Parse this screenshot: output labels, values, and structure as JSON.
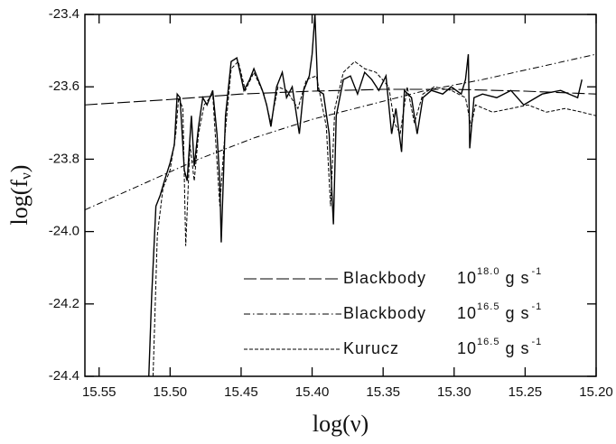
{
  "chart_data": {
    "type": "line",
    "xlabel": "log(ν)",
    "ylabel": {
      "text": "log(f",
      "subscript": "ν",
      "suffix": ")"
    },
    "xlim": [
      15.56,
      15.2
    ],
    "ylim": [
      -24.4,
      -23.4
    ],
    "xticks": [
      15.55,
      {
        "value": 15.5,
        "label": "15.50"
      },
      15.45,
      {
        "value": 15.4,
        "label": "15.40"
      },
      15.35,
      {
        "value": 15.3,
        "label": "15.30"
      },
      15.25,
      {
        "value": 15.2,
        "label": "15.20"
      }
    ],
    "yticks": [
      -24.4,
      -24.2,
      {
        "value": -24,
        "label": "-24.0"
      },
      -23.8,
      -23.6,
      -23.4
    ],
    "legend": "lower right",
    "series": [
      {
        "color": "#000000",
        "line_style": "solid",
        "x": [
          15.515,
          15.513,
          15.51,
          15.507,
          15.504,
          15.5,
          15.497,
          15.495,
          15.493,
          15.49,
          15.488,
          15.485,
          15.483,
          15.48,
          15.477,
          15.474,
          15.47,
          15.467,
          15.465,
          15.464,
          15.461,
          15.457,
          15.453,
          15.448,
          15.444,
          15.441,
          15.435,
          15.432,
          15.429,
          15.425,
          15.421,
          15.418,
          15.414,
          15.409,
          15.406,
          15.402,
          15.4,
          15.398,
          15.396,
          15.392,
          15.388,
          15.385,
          15.383,
          15.378,
          15.373,
          15.368,
          15.363,
          15.358,
          15.353,
          15.348,
          15.344,
          15.341,
          15.337,
          15.335,
          15.33,
          15.326,
          15.322,
          15.316,
          15.308,
          15.302,
          15.295,
          15.292,
          15.29,
          15.289,
          15.286,
          15.28,
          15.27,
          15.26,
          15.251,
          15.238,
          15.225,
          15.213,
          15.21
        ],
        "values": [
          -24.4,
          -24.18,
          -23.93,
          -23.9,
          -23.86,
          -23.81,
          -23.76,
          -23.62,
          -23.63,
          -23.83,
          -23.86,
          -23.68,
          -23.82,
          -23.71,
          -23.63,
          -23.65,
          -23.61,
          -23.73,
          -23.86,
          -24.03,
          -23.68,
          -23.53,
          -23.52,
          -23.61,
          -23.58,
          -23.55,
          -23.61,
          -23.65,
          -23.71,
          -23.6,
          -23.56,
          -23.63,
          -23.6,
          -23.73,
          -23.61,
          -23.57,
          -23.51,
          -23.4,
          -23.61,
          -23.62,
          -23.73,
          -23.98,
          -23.68,
          -23.58,
          -23.57,
          -23.62,
          -23.56,
          -23.58,
          -23.61,
          -23.57,
          -23.73,
          -23.66,
          -23.78,
          -23.61,
          -23.63,
          -23.73,
          -23.63,
          -23.61,
          -23.62,
          -23.6,
          -23.62,
          -23.58,
          -23.51,
          -23.77,
          -23.63,
          -23.62,
          -23.63,
          -23.61,
          -23.65,
          -23.62,
          -23.61,
          -23.63,
          -23.58
        ]
      },
      {
        "name": "Blackbody",
        "rate": {
          "base": "10",
          "exponent": "18.0",
          "unit": "g  s",
          "unit_exponent": "-1"
        },
        "color": "#000000",
        "line_style": "long-dash",
        "x": [
          15.56,
          15.5,
          15.45,
          15.4,
          15.35,
          15.3,
          15.25,
          15.2
        ],
        "values": [
          -23.65,
          -23.635,
          -23.62,
          -23.612,
          -23.607,
          -23.607,
          -23.612,
          -23.62
        ]
      },
      {
        "name": "Blackbody",
        "rate": {
          "base": "10",
          "exponent": "16.5",
          "unit": "g  s",
          "unit_exponent": "-1"
        },
        "color": "#000000",
        "line_style": "dash-dot",
        "x": [
          15.56,
          15.52,
          15.48,
          15.44,
          15.4,
          15.36,
          15.32,
          15.28,
          15.24,
          15.2
        ],
        "values": [
          -23.94,
          -23.87,
          -23.8,
          -23.74,
          -23.69,
          -23.65,
          -23.61,
          -23.58,
          -23.545,
          -23.51
        ]
      },
      {
        "name": "Kurucz",
        "rate": {
          "base": "10",
          "exponent": "16.5",
          "unit": "g  s",
          "unit_exponent": "-1"
        },
        "color": "#000000",
        "line_style": "dash",
        "x": [
          15.512,
          15.509,
          15.505,
          15.5,
          15.496,
          15.494,
          15.491,
          15.489,
          15.486,
          15.483,
          15.48,
          15.476,
          15.47,
          15.465,
          15.462,
          15.457,
          15.452,
          15.447,
          15.441,
          15.434,
          15.429,
          15.424,
          15.418,
          15.41,
          15.404,
          15.397,
          15.394,
          15.39,
          15.387,
          15.384,
          15.378,
          15.37,
          15.363,
          15.355,
          15.346,
          15.342,
          15.338,
          15.333,
          15.328,
          15.322,
          15.314,
          15.302,
          15.292,
          15.288,
          15.285,
          15.273,
          15.26,
          15.248,
          15.235,
          15.222,
          15.21,
          15.2
        ],
        "values": [
          -24.4,
          -24.01,
          -23.88,
          -23.83,
          -23.73,
          -23.63,
          -23.66,
          -24.04,
          -23.76,
          -23.86,
          -23.73,
          -23.65,
          -23.62,
          -23.93,
          -23.76,
          -23.55,
          -23.53,
          -23.61,
          -23.56,
          -23.62,
          -23.7,
          -23.6,
          -23.61,
          -23.66,
          -23.58,
          -23.57,
          -23.63,
          -23.71,
          -23.93,
          -23.66,
          -23.56,
          -23.53,
          -23.55,
          -23.56,
          -23.6,
          -23.7,
          -23.73,
          -23.6,
          -23.7,
          -23.62,
          -23.6,
          -23.61,
          -23.63,
          -23.71,
          -23.65,
          -23.67,
          -23.66,
          -23.65,
          -23.67,
          -23.66,
          -23.67,
          -23.68
        ]
      }
    ]
  }
}
